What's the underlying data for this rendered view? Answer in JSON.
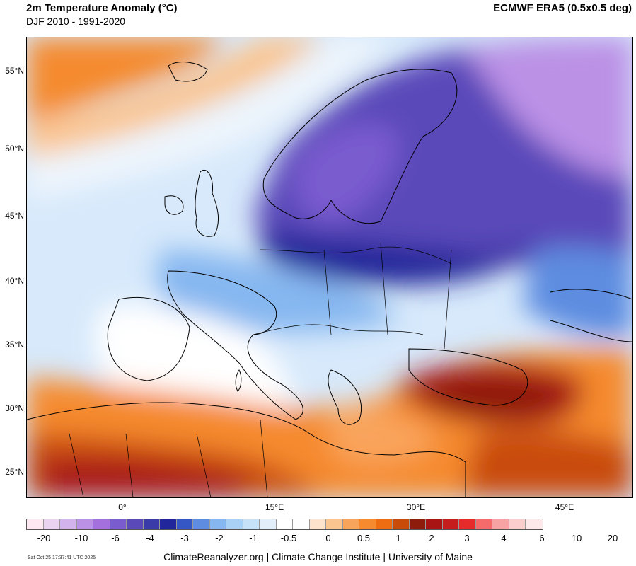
{
  "header": {
    "title": "2m Temperature Anomaly (°C)",
    "subtitle": "DJF 2010 - 1991-2020",
    "source": "ECMWF ERA5 (0.5x0.5 deg)"
  },
  "map": {
    "lat_labels": [
      "55°N",
      "50°N",
      "45°N",
      "40°N",
      "35°N",
      "30°N",
      "25°N"
    ],
    "lon_labels": [
      "0°",
      "15°E",
      "30°E",
      "45°E"
    ]
  },
  "colorbar": {
    "colors": [
      "#fde7f0",
      "#e9d3f1",
      "#d2b3ec",
      "#bb91e6",
      "#a370dd",
      "#7a5ccf",
      "#5a4ab9",
      "#3a3aa8",
      "#21279a",
      "#3557c6",
      "#5d8ce0",
      "#86b7f0",
      "#a9d1f6",
      "#c5e2f9",
      "#e2effb",
      "#ffffff",
      "#ffffff",
      "#fde2cc",
      "#fbc590",
      "#f9a45b",
      "#f58a2e",
      "#ef6d12",
      "#c94b09",
      "#8d1c0c",
      "#a81313",
      "#c51d1d",
      "#e72a2a",
      "#f56a6a",
      "#f7a3a3",
      "#fbcece",
      "#fde9ea"
    ],
    "labels": [
      "-20",
      "-10",
      "-6",
      "-4",
      "-3",
      "-2",
      "-1",
      "-0.5",
      "0",
      "0.5",
      "1",
      "2",
      "3",
      "4",
      "6",
      "10",
      "20"
    ]
  },
  "footer": {
    "credit": "ClimateReanalyzer.org | Climate Change Institute | University of Maine",
    "timestamp": "Sat Oct 25 17:37:41 UTC 2025"
  }
}
